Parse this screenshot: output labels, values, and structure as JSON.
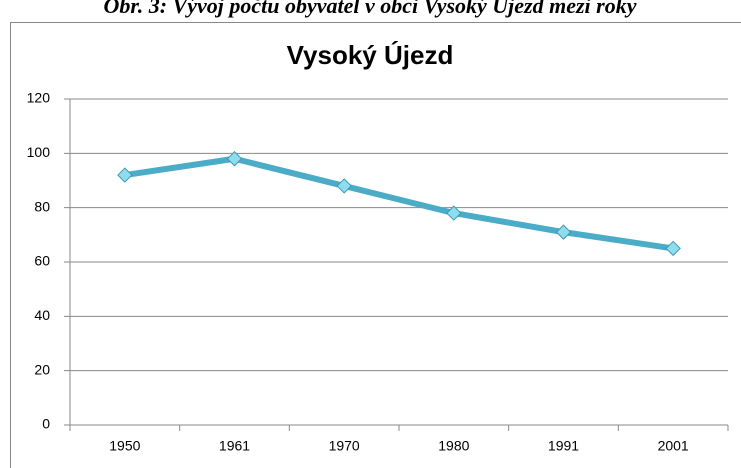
{
  "caption": "Obr. 3: Vývoj počtu obyvatel v obci  Vysoký Újezd mezi roky",
  "chart_data": {
    "type": "line",
    "title": "Vysoký Újezd",
    "categories": [
      "1950",
      "1961",
      "1970",
      "1980",
      "1991",
      "2001"
    ],
    "series": [
      {
        "name": "Vysoký Újezd",
        "color": "#4aacc6",
        "values": [
          92,
          98,
          88,
          78,
          71,
          65
        ]
      }
    ],
    "ylim": [
      0,
      120
    ],
    "yticks": [
      0,
      20,
      40,
      60,
      80,
      100,
      120
    ],
    "grid": true,
    "legend": false
  }
}
